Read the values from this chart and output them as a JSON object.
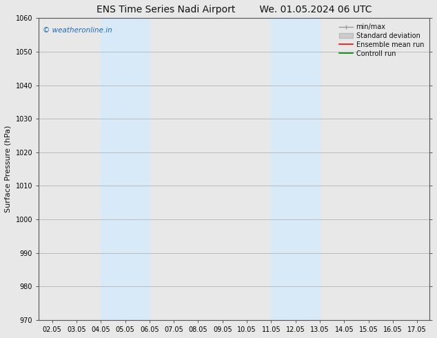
{
  "title_left": "ENS Time Series Nadi Airport",
  "title_right": "We. 01.05.2024 06 UTC",
  "ylabel": "Surface Pressure (hPa)",
  "ylim": [
    970,
    1060
  ],
  "yticks": [
    970,
    980,
    990,
    1000,
    1010,
    1020,
    1030,
    1040,
    1050,
    1060
  ],
  "xlim": [
    1.5,
    17.55
  ],
  "xticks": [
    2.05,
    3.05,
    4.05,
    5.05,
    6.05,
    7.05,
    8.05,
    9.05,
    10.05,
    11.05,
    12.05,
    13.05,
    14.05,
    15.05,
    16.05,
    17.05
  ],
  "xticklabels": [
    "02.05",
    "03.05",
    "04.05",
    "05.05",
    "06.05",
    "07.05",
    "08.05",
    "09.05",
    "10.05",
    "11.05",
    "12.05",
    "13.05",
    "14.05",
    "15.05",
    "16.05",
    "17.05"
  ],
  "shade_regions": [
    {
      "xmin": 4.05,
      "xmax": 6.05
    },
    {
      "xmin": 11.05,
      "xmax": 13.05
    }
  ],
  "shade_color": "#d8eaf7",
  "watermark": "© weatheronline.in",
  "watermark_color": "#1a6bbf",
  "background_color": "#e8e8e8",
  "plot_bg_color": "#e8e8e8",
  "grid_color": "#aaaaaa",
  "font_color": "#111111",
  "title_fontsize": 10,
  "tick_fontsize": 7,
  "ylabel_fontsize": 8
}
